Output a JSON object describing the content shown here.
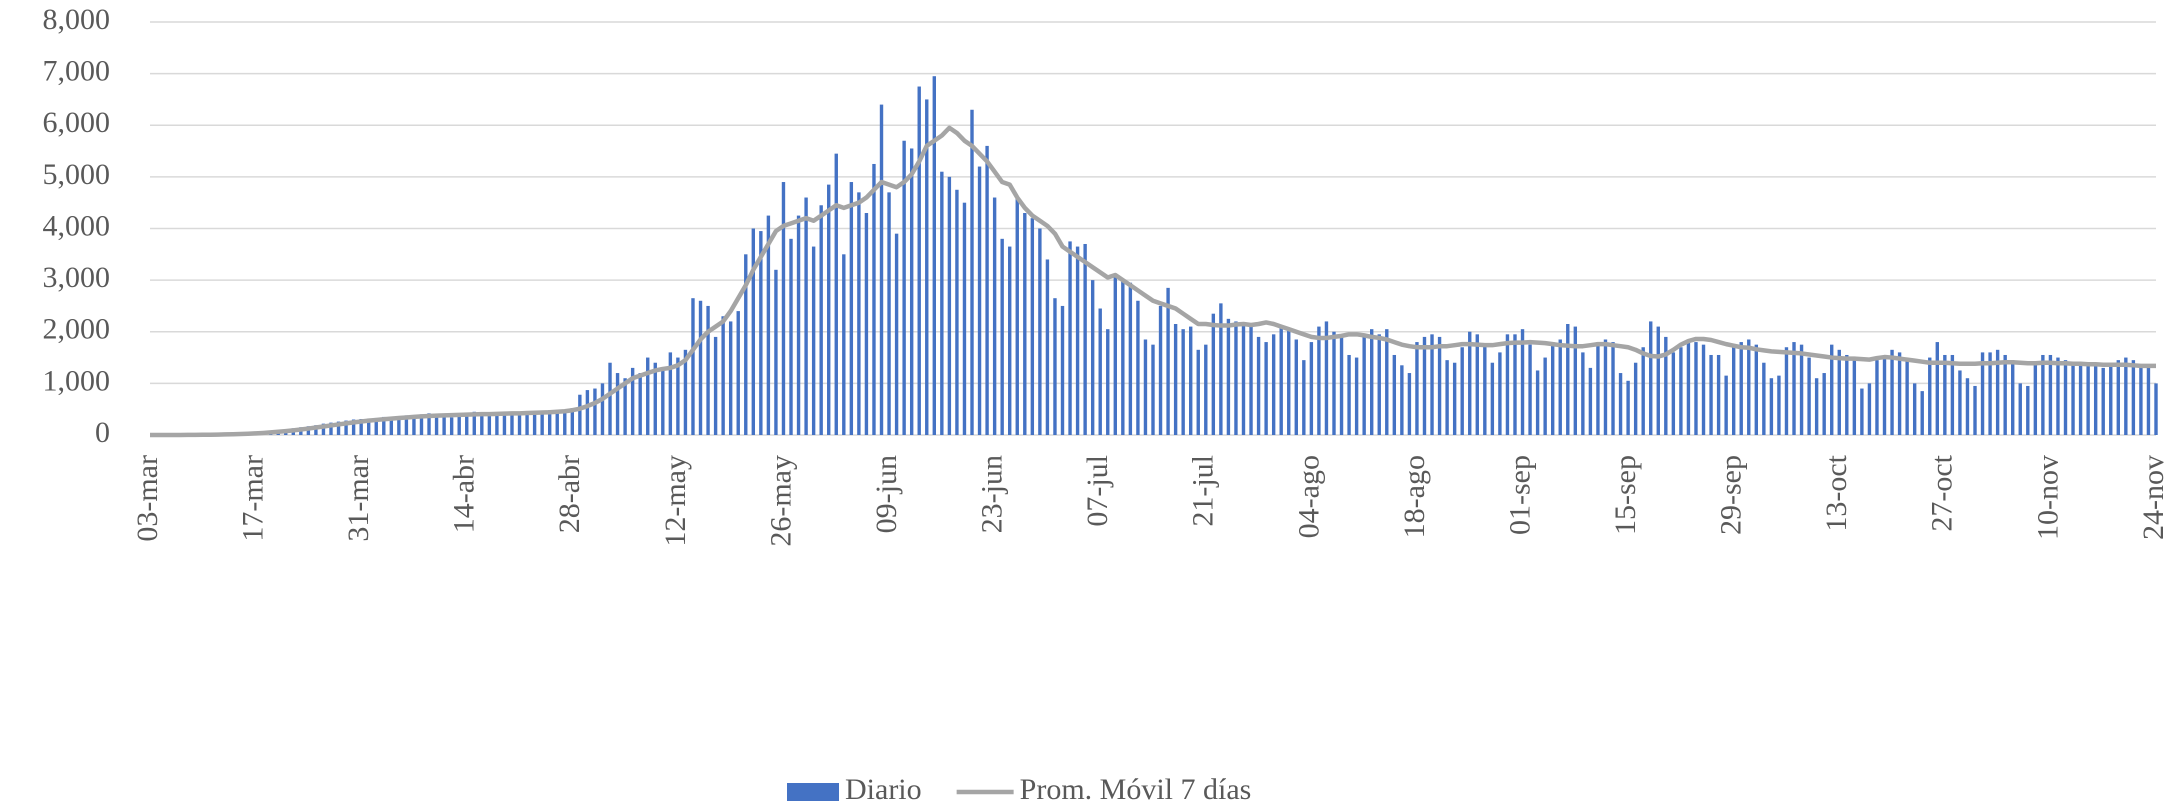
{
  "chart_data": {
    "type": "bar-line",
    "categories": [
      "03-mar",
      null,
      null,
      null,
      null,
      null,
      null,
      null,
      null,
      null,
      null,
      null,
      null,
      null,
      "17-mar",
      null,
      null,
      null,
      null,
      null,
      null,
      null,
      null,
      null,
      null,
      null,
      null,
      null,
      "31-mar",
      null,
      null,
      null,
      null,
      null,
      null,
      null,
      null,
      null,
      null,
      null,
      null,
      null,
      "14-abr",
      null,
      null,
      null,
      null,
      null,
      null,
      null,
      null,
      null,
      null,
      null,
      null,
      null,
      "28-abr",
      null,
      null,
      null,
      null,
      null,
      null,
      null,
      null,
      null,
      null,
      null,
      null,
      null,
      "12-may",
      null,
      null,
      null,
      null,
      null,
      null,
      null,
      null,
      null,
      null,
      null,
      null,
      null,
      "26-may",
      null,
      null,
      null,
      null,
      null,
      null,
      null,
      null,
      null,
      null,
      null,
      null,
      null,
      "09-jun",
      null,
      null,
      null,
      null,
      null,
      null,
      null,
      null,
      null,
      null,
      null,
      null,
      null,
      "23-jun",
      null,
      null,
      null,
      null,
      null,
      null,
      null,
      null,
      null,
      null,
      null,
      null,
      null,
      "07-jul",
      null,
      null,
      null,
      null,
      null,
      null,
      null,
      null,
      null,
      null,
      null,
      null,
      null,
      "21-jul",
      null,
      null,
      null,
      null,
      null,
      null,
      null,
      null,
      null,
      null,
      null,
      null,
      null,
      "04-ago",
      null,
      null,
      null,
      null,
      null,
      null,
      null,
      null,
      null,
      null,
      null,
      null,
      null,
      "18-ago",
      null,
      null,
      null,
      null,
      null,
      null,
      null,
      null,
      null,
      null,
      null,
      null,
      null,
      "01-sep",
      null,
      null,
      null,
      null,
      null,
      null,
      null,
      null,
      null,
      null,
      null,
      null,
      null,
      "15-sep",
      null,
      null,
      null,
      null,
      null,
      null,
      null,
      null,
      null,
      null,
      null,
      null,
      null,
      "29-sep",
      null,
      null,
      null,
      null,
      null,
      null,
      null,
      null,
      null,
      null,
      null,
      null,
      null,
      "13-oct",
      null,
      null,
      null,
      null,
      null,
      null,
      null,
      null,
      null,
      null,
      null,
      null,
      null,
      "27-oct",
      null,
      null,
      null,
      null,
      null,
      null,
      null,
      null,
      null,
      null,
      null,
      null,
      null,
      "10-nov",
      null,
      null,
      null,
      null,
      null,
      null,
      null,
      null,
      null,
      null,
      null,
      null,
      null,
      "24-nov"
    ],
    "series": [
      {
        "name": "Diario",
        "type": "bar",
        "color": "#4472c4",
        "values": [
          0,
          0,
          0,
          0,
          2,
          3,
          5,
          8,
          10,
          15,
          20,
          25,
          30,
          40,
          50,
          60,
          80,
          90,
          110,
          130,
          150,
          170,
          190,
          220,
          240,
          260,
          280,
          300,
          310,
          320,
          330,
          350,
          340,
          360,
          380,
          370,
          400,
          420,
          380,
          360,
          340,
          400,
          420,
          450,
          400,
          380,
          420,
          440,
          410,
          380,
          420,
          450,
          470,
          480,
          430,
          460,
          520,
          780,
          870,
          900,
          1000,
          1400,
          1200,
          1100,
          1300,
          1200,
          1500,
          1400,
          1300,
          1600,
          1500,
          1650,
          2650,
          2600,
          2500,
          1900,
          2300,
          2200,
          2400,
          3500,
          4000,
          3950,
          4250,
          3200,
          4900,
          3800,
          4250,
          4600,
          3650,
          4450,
          4850,
          5450,
          3500,
          4900,
          4700,
          4300,
          5250,
          6400,
          4700,
          3900,
          5700,
          5550,
          6750,
          6500,
          6950,
          5100,
          5000,
          4750,
          4500,
          6300,
          5200,
          5600,
          4600,
          3800,
          3650,
          4600,
          4300,
          4200,
          4000,
          3400,
          2650,
          2500,
          3750,
          3650,
          3700,
          3000,
          2450,
          2050,
          3100,
          3000,
          2950,
          2600,
          1850,
          1750,
          2500,
          2850,
          2150,
          2050,
          2100,
          1650,
          1750,
          2350,
          2550,
          2250,
          2200,
          2150,
          2150,
          1900,
          1800,
          1950,
          2100,
          2050,
          1850,
          1450,
          1800,
          2100,
          2200,
          2000,
          1950,
          1550,
          1500,
          1900,
          2050,
          1950,
          2050,
          1550,
          1350,
          1200,
          1800,
          1900,
          1950,
          1900,
          1450,
          1400,
          1700,
          2000,
          1950,
          1750,
          1400,
          1600,
          1950,
          1950,
          2050,
          1750,
          1250,
          1500,
          1800,
          1850,
          2150,
          2100,
          1600,
          1300,
          1800,
          1850,
          1800,
          1200,
          1050,
          1400,
          1700,
          2200,
          2100,
          1900,
          1600,
          1700,
          1850,
          1800,
          1750,
          1550,
          1550,
          1150,
          1750,
          1800,
          1850,
          1750,
          1400,
          1100,
          1150,
          1700,
          1800,
          1750,
          1500,
          1100,
          1200,
          1750,
          1650,
          1550,
          1500,
          900,
          1000,
          1450,
          1500,
          1650,
          1600,
          1450,
          1000,
          850,
          1500,
          1800,
          1550,
          1550,
          1250,
          1100,
          950,
          1600,
          1600,
          1650,
          1550,
          1450,
          1000,
          950,
          1400,
          1550,
          1550,
          1500,
          1450,
          1400,
          1350,
          1400,
          1350,
          1300,
          1400,
          1450,
          1500,
          1450,
          1350,
          1300,
          1000
        ]
      },
      {
        "name": "Prom. Móvil 7 días",
        "type": "line",
        "color": "#a5a5a5",
        "values": [
          0,
          0,
          0,
          0,
          1,
          2,
          3,
          4,
          6,
          8,
          11,
          15,
          19,
          25,
          32,
          40,
          50,
          62,
          75,
          90,
          107,
          125,
          145,
          165,
          185,
          205,
          225,
          245,
          262,
          278,
          292,
          305,
          318,
          330,
          340,
          350,
          360,
          368,
          375,
          380,
          385,
          390,
          395,
          400,
          405,
          405,
          410,
          415,
          418,
          420,
          425,
          430,
          435,
          440,
          450,
          460,
          480,
          510,
          560,
          620,
          700,
          800,
          900,
          1000,
          1100,
          1150,
          1200,
          1250,
          1280,
          1300,
          1350,
          1450,
          1650,
          1850,
          2000,
          2100,
          2200,
          2400,
          2650,
          2900,
          3200,
          3450,
          3700,
          3950,
          4050,
          4100,
          4150,
          4200,
          4150,
          4250,
          4350,
          4450,
          4400,
          4450,
          4500,
          4600,
          4750,
          4900,
          4850,
          4800,
          4900,
          5050,
          5300,
          5600,
          5700,
          5800,
          5950,
          5850,
          5700,
          5600,
          5450,
          5300,
          5100,
          4900,
          4850,
          4600,
          4400,
          4250,
          4150,
          4050,
          3900,
          3650,
          3550,
          3450,
          3350,
          3250,
          3150,
          3050,
          3100,
          3000,
          2900,
          2800,
          2700,
          2600,
          2550,
          2500,
          2450,
          2350,
          2250,
          2150,
          2150,
          2130,
          2120,
          2120,
          2140,
          2150,
          2130,
          2150,
          2180,
          2150,
          2100,
          2050,
          2000,
          1950,
          1900,
          1880,
          1880,
          1900,
          1920,
          1950,
          1950,
          1930,
          1900,
          1880,
          1850,
          1800,
          1750,
          1720,
          1700,
          1700,
          1700,
          1720,
          1720,
          1740,
          1760,
          1760,
          1750,
          1740,
          1740,
          1760,
          1780,
          1790,
          1790,
          1800,
          1790,
          1780,
          1760,
          1740,
          1730,
          1720,
          1720,
          1740,
          1760,
          1760,
          1740,
          1720,
          1700,
          1650,
          1580,
          1530,
          1520,
          1560,
          1650,
          1750,
          1820,
          1860,
          1860,
          1840,
          1800,
          1760,
          1730,
          1700,
          1690,
          1660,
          1640,
          1620,
          1610,
          1600,
          1590,
          1580,
          1560,
          1540,
          1520,
          1500,
          1490,
          1480,
          1480,
          1470,
          1460,
          1490,
          1510,
          1500,
          1480,
          1460,
          1440,
          1420,
          1400,
          1400,
          1400,
          1390,
          1380,
          1380,
          1380,
          1390,
          1390,
          1400,
          1410,
          1410,
          1400,
          1390,
          1390,
          1400,
          1400,
          1390,
          1390,
          1380,
          1380,
          1370,
          1370,
          1360,
          1360,
          1360,
          1360,
          1350,
          1340,
          1340,
          1340
        ]
      }
    ],
    "ylim": [
      0,
      8000
    ],
    "yticks": [
      0,
      {
        "value": 1000,
        "label": "1,000"
      },
      {
        "value": 2000,
        "label": "2,000"
      },
      {
        "value": 3000,
        "label": "3,000"
      },
      {
        "value": 4000,
        "label": "4,000"
      },
      {
        "value": 5000,
        "label": "5,000"
      },
      {
        "value": 6000,
        "label": "6,000"
      },
      {
        "value": 7000,
        "label": "7,000"
      },
      {
        "value": 8000,
        "label": "8,000"
      }
    ],
    "grid": true,
    "legend": "bottom"
  }
}
